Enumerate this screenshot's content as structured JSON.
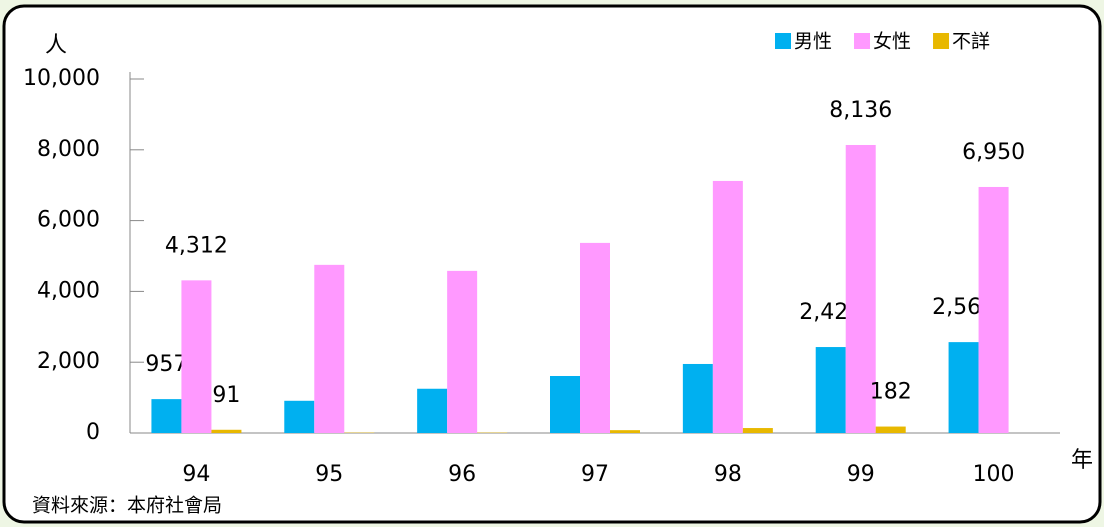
{
  "chart_data": {
    "type": "bar",
    "y_label": "人",
    "x_label": "年",
    "source": "資料來源：本府社會局",
    "categories": [
      "94",
      "95",
      "96",
      "97",
      "98",
      "99",
      "100"
    ],
    "series": [
      {
        "name": "男性",
        "color": "#00b0f0",
        "values": [
          957,
          910,
          1250,
          1610,
          1950,
          2428,
          2567
        ],
        "value_labels": [
          "957",
          null,
          null,
          null,
          null,
          "2,428",
          "2,567"
        ]
      },
      {
        "name": "女性",
        "color": "#ff99ff",
        "values": [
          4312,
          4750,
          4580,
          5370,
          7120,
          8136,
          6950
        ],
        "value_labels": [
          "4,312",
          null,
          null,
          null,
          null,
          "8,136",
          "6,950"
        ]
      },
      {
        "name": "不詳",
        "color": "#e8b800",
        "values": [
          91,
          10,
          10,
          80,
          140,
          182,
          0
        ],
        "value_labels": [
          "91",
          null,
          null,
          null,
          null,
          "182",
          null
        ]
      }
    ],
    "ylim": [
      0,
      10000
    ],
    "yticks": [
      0,
      {
        "value": 2000,
        "label": "2,000"
      },
      {
        "value": 4000,
        "label": "4,000"
      },
      {
        "value": 6000,
        "label": "6,000"
      },
      {
        "value": 8000,
        "label": "8,000"
      },
      {
        "value": 10000,
        "label": "10,000"
      }
    ],
    "legend": "top-right"
  }
}
